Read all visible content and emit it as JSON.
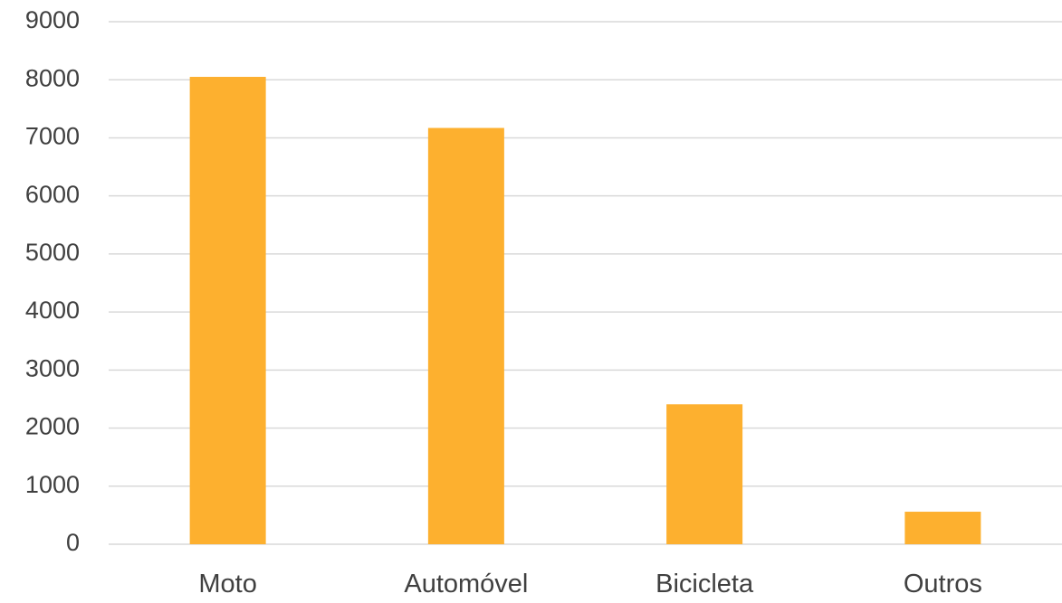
{
  "chart_data": {
    "type": "bar",
    "categories": [
      "Moto",
      "Automóvel",
      "Bicicleta",
      "Outros"
    ],
    "values": [
      8050,
      7170,
      2410,
      560
    ],
    "title": "",
    "xlabel": "",
    "ylabel": "",
    "ylim": [
      0,
      9000
    ],
    "y_ticks": [
      0,
      1000,
      2000,
      3000,
      4000,
      5000,
      6000,
      7000,
      8000,
      9000
    ],
    "grid": true,
    "legend": "none",
    "bar_color": "#FDB02F",
    "grid_color": "#D9D9D9",
    "text_color": "#404040"
  }
}
